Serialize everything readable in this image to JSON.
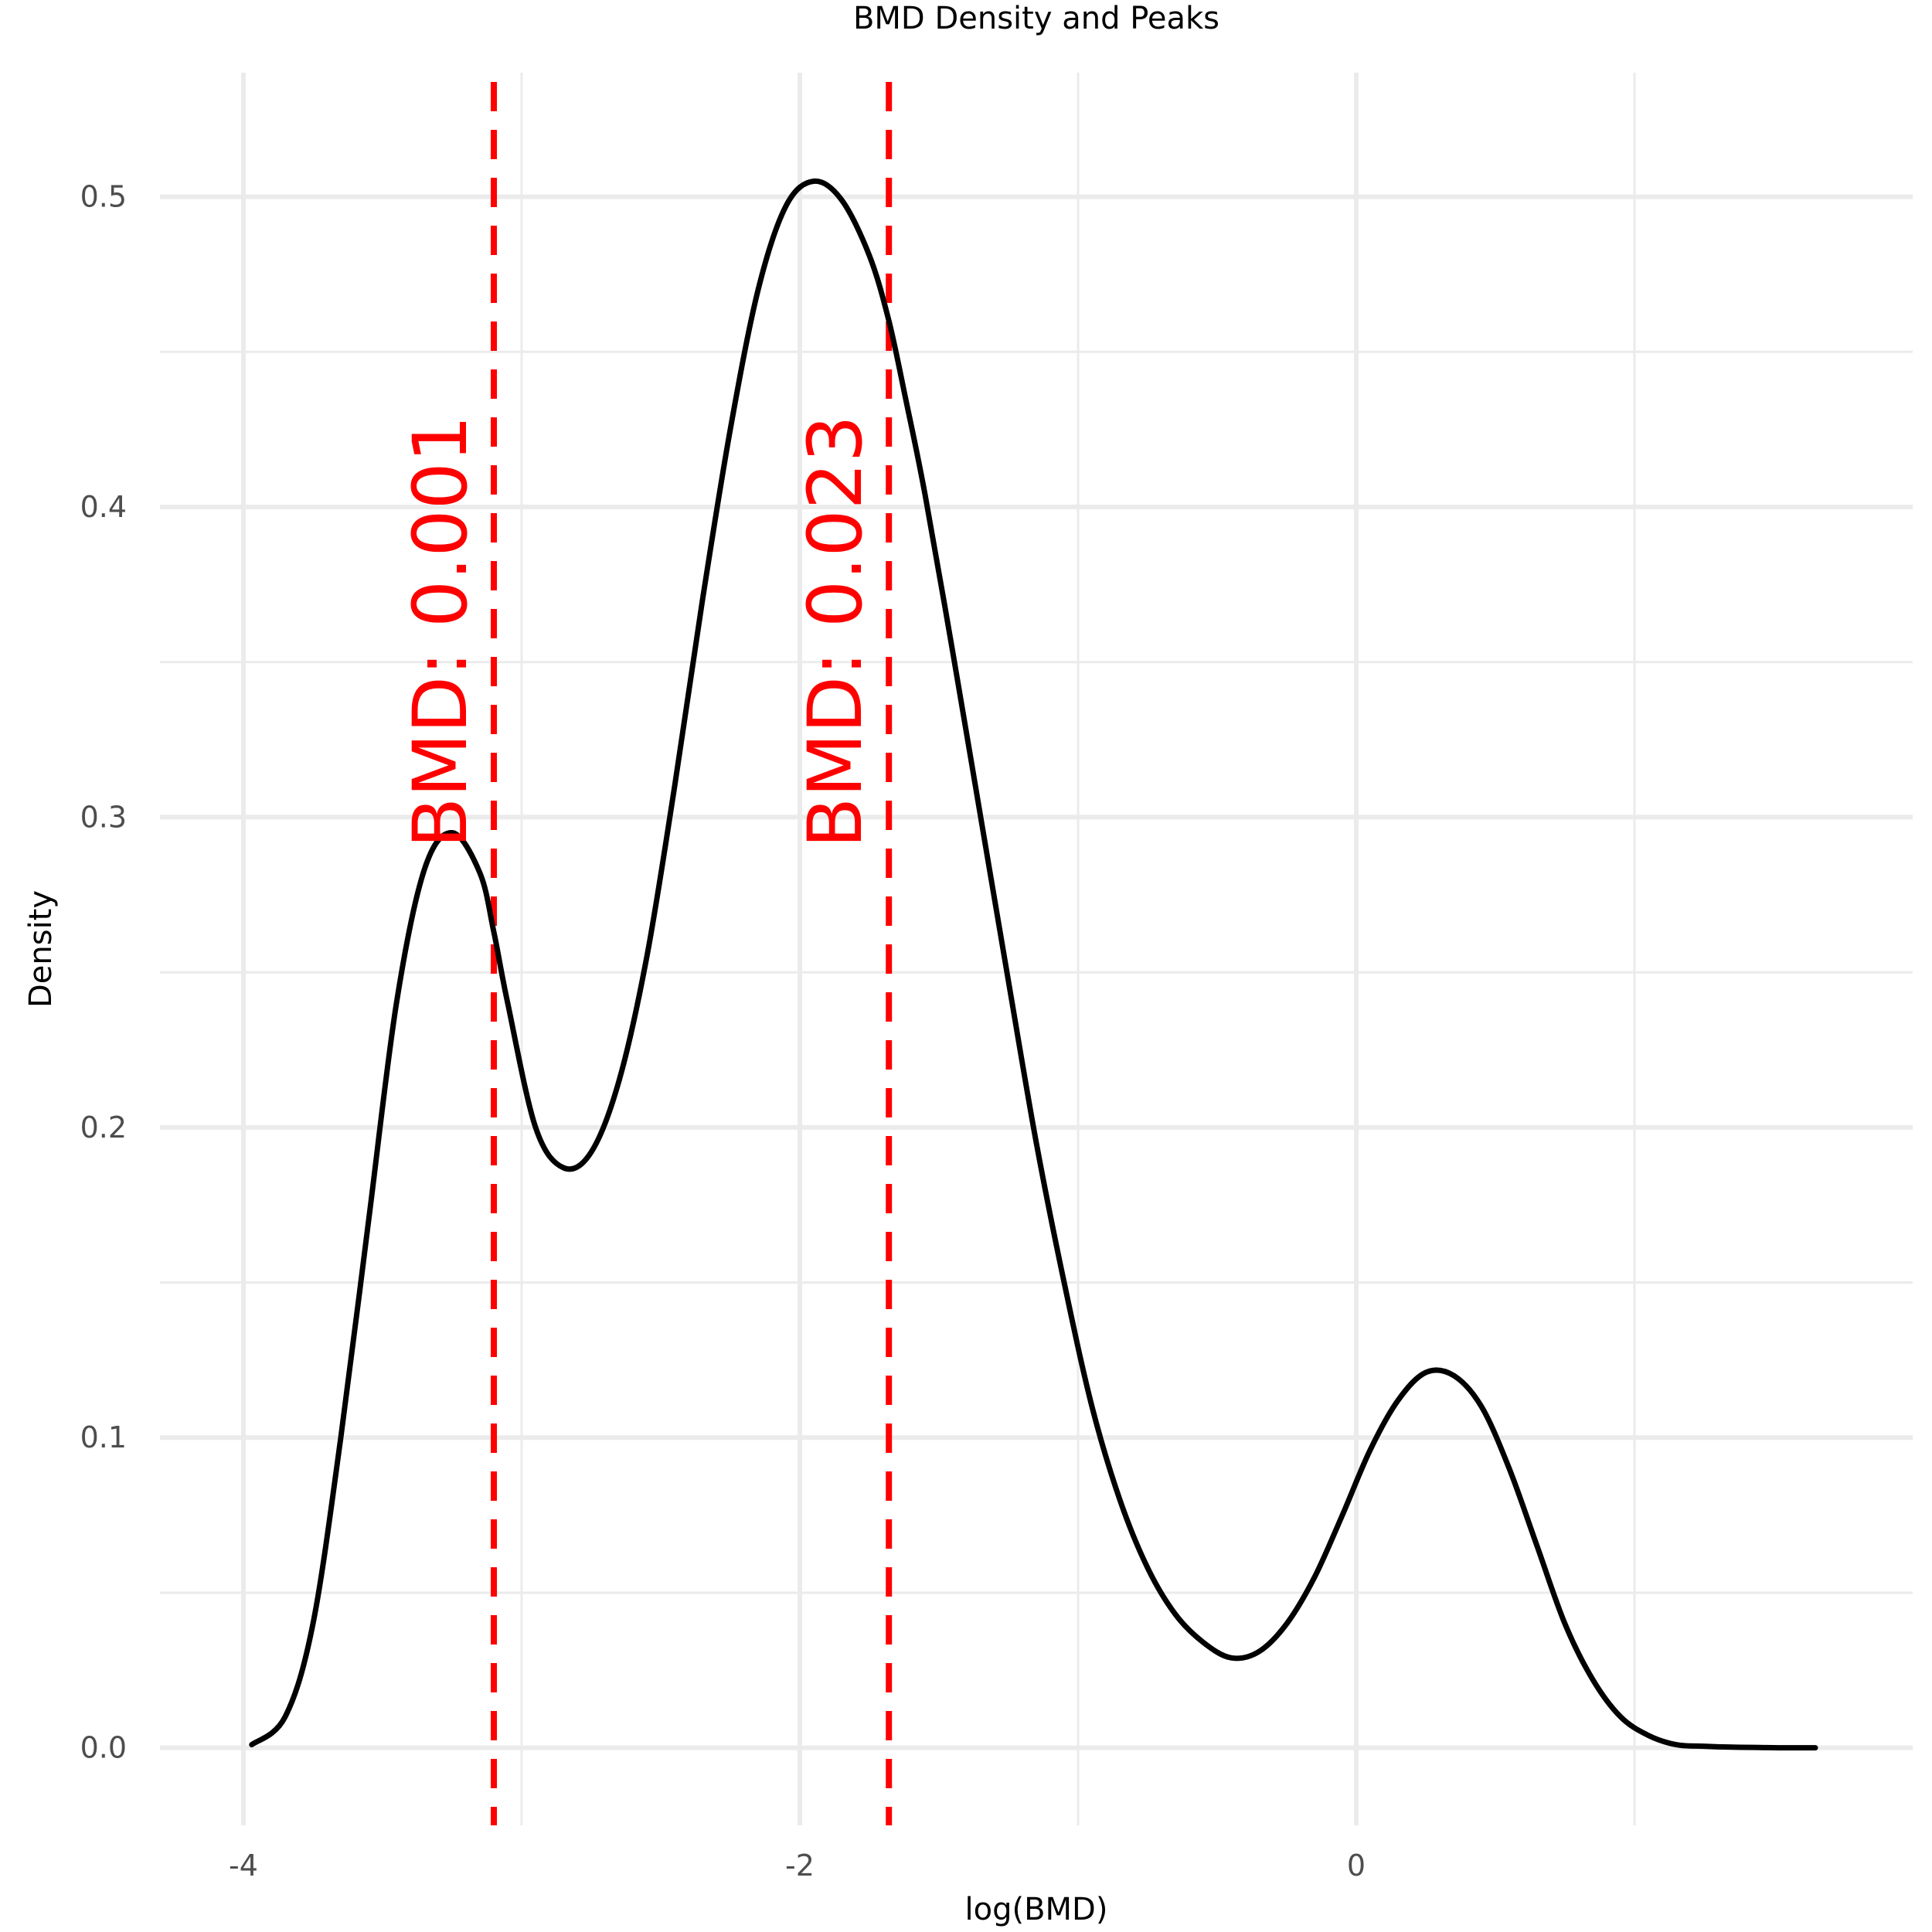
{
  "chart_data": {
    "type": "line",
    "title": "BMD Density and Peaks",
    "xlabel": "log(BMD)",
    "ylabel": "Density",
    "xlim": [
      -4.3,
      2.0
    ],
    "ylim": [
      -0.025,
      0.54
    ],
    "x_major_ticks": [
      -4,
      -2,
      0
    ],
    "x_tick_labels": [
      "-4",
      "-2",
      "0"
    ],
    "x_minor_ticks": [
      -3,
      -1,
      1
    ],
    "y_major_ticks": [
      0.0,
      0.1,
      0.2,
      0.3,
      0.4,
      0.5
    ],
    "y_tick_labels": [
      "0.0",
      "0.1",
      "0.2",
      "0.3",
      "0.4",
      "0.5"
    ],
    "y_minor_ticks": [
      0.05,
      0.15,
      0.25,
      0.35,
      0.45
    ],
    "grid": true,
    "series": [
      {
        "name": "density",
        "color": "#000000",
        "x": [
          -3.97,
          -3.85,
          -3.75,
          -3.65,
          -3.55,
          -3.45,
          -3.35,
          -3.25,
          -3.15,
          -3.1,
          -3.05,
          -2.95,
          -2.85,
          -2.75,
          -2.65,
          -2.55,
          -2.45,
          -2.35,
          -2.25,
          -2.15,
          -2.05,
          -1.95,
          -1.85,
          -1.75,
          -1.68,
          -1.62,
          -1.55,
          -1.45,
          -1.35,
          -1.25,
          -1.15,
          -1.05,
          -0.95,
          -0.85,
          -0.75,
          -0.65,
          -0.55,
          -0.45,
          -0.35,
          -0.25,
          -0.15,
          -0.05,
          0.05,
          0.15,
          0.25,
          0.35,
          0.45,
          0.55,
          0.65,
          0.75,
          0.85,
          0.95,
          1.05,
          1.15,
          1.25,
          1.35,
          1.45,
          1.55,
          1.65
        ],
        "y": [
          0.001,
          0.01,
          0.04,
          0.1,
          0.17,
          0.24,
          0.283,
          0.295,
          0.282,
          0.263,
          0.24,
          0.2,
          0.187,
          0.192,
          0.215,
          0.255,
          0.31,
          0.37,
          0.425,
          0.47,
          0.497,
          0.505,
          0.499,
          0.481,
          0.46,
          0.435,
          0.404,
          0.353,
          0.3,
          0.247,
          0.195,
          0.15,
          0.11,
          0.08,
          0.058,
          0.043,
          0.034,
          0.029,
          0.031,
          0.04,
          0.055,
          0.075,
          0.096,
          0.112,
          0.121,
          0.12,
          0.11,
          0.09,
          0.065,
          0.04,
          0.022,
          0.01,
          0.004,
          0.001,
          0.0005,
          0.0002,
          0.0001,
          0.0,
          0.0
        ]
      }
    ],
    "peaks": [
      {
        "x": -3.1,
        "label": "BMD: 0.001",
        "color": "#ff0000"
      },
      {
        "x": -1.68,
        "label": "BMD: 0.023",
        "color": "#ff0000"
      }
    ]
  }
}
